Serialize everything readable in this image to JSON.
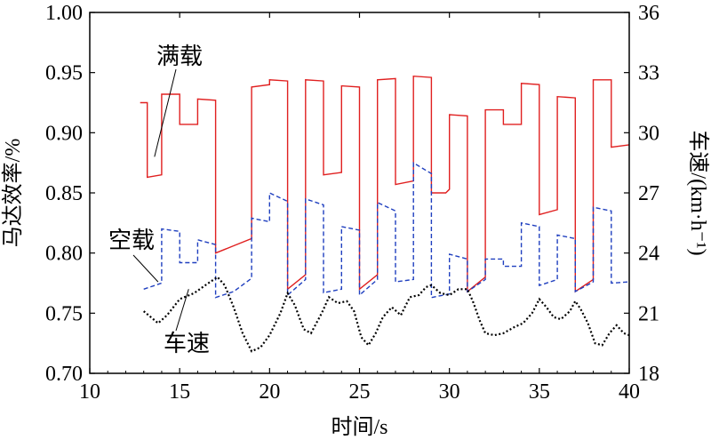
{
  "chart_data": {
    "type": "line",
    "xlabel": "时间/s",
    "ylabel_left": "马达效率/%",
    "ylabel_right": "车速/(km·h⁻¹)",
    "xlim": [
      10,
      40
    ],
    "ylim_left": [
      0.7,
      1.0
    ],
    "ylim_right": [
      18,
      36
    ],
    "x_ticks": [
      10,
      15,
      20,
      25,
      30,
      35,
      40
    ],
    "y_left_ticks": [
      "0.70",
      "0.75",
      "0.80",
      "0.85",
      "0.90",
      "0.95",
      "1.00"
    ],
    "y_right_ticks": [
      18,
      21,
      24,
      27,
      30,
      33,
      36
    ],
    "series": [
      {
        "name": "满载",
        "axis": "left",
        "color": "#e02020",
        "dash": "solid",
        "points": [
          [
            12.8,
            0.925
          ],
          [
            13.2,
            0.925
          ],
          [
            13.2,
            0.863
          ],
          [
            14.0,
            0.865
          ],
          [
            14.0,
            0.932
          ],
          [
            15.0,
            0.932
          ],
          [
            15.0,
            0.907
          ],
          [
            16.0,
            0.907
          ],
          [
            16.0,
            0.928
          ],
          [
            17.0,
            0.927
          ],
          [
            17.0,
            0.8
          ],
          [
            18.0,
            0.806
          ],
          [
            19.0,
            0.812
          ],
          [
            19.0,
            0.938
          ],
          [
            20.0,
            0.94
          ],
          [
            20.0,
            0.944
          ],
          [
            21.0,
            0.943
          ],
          [
            21.0,
            0.77
          ],
          [
            22.0,
            0.782
          ],
          [
            22.0,
            0.944
          ],
          [
            23.0,
            0.943
          ],
          [
            23.0,
            0.865
          ],
          [
            24.0,
            0.867
          ],
          [
            24.0,
            0.939
          ],
          [
            25.0,
            0.938
          ],
          [
            25.0,
            0.77
          ],
          [
            26.0,
            0.782
          ],
          [
            26.0,
            0.944
          ],
          [
            27.0,
            0.945
          ],
          [
            27.0,
            0.857
          ],
          [
            28.0,
            0.86
          ],
          [
            28.0,
            0.947
          ],
          [
            29.0,
            0.946
          ],
          [
            29.0,
            0.85
          ],
          [
            29.8,
            0.85
          ],
          [
            30.0,
            0.853
          ],
          [
            30.0,
            0.915
          ],
          [
            31.0,
            0.914
          ],
          [
            31.0,
            0.768
          ],
          [
            32.0,
            0.78
          ],
          [
            32.0,
            0.919
          ],
          [
            33.0,
            0.919
          ],
          [
            33.0,
            0.907
          ],
          [
            34.0,
            0.907
          ],
          [
            34.0,
            0.941
          ],
          [
            35.0,
            0.94
          ],
          [
            35.0,
            0.832
          ],
          [
            36.0,
            0.836
          ],
          [
            36.0,
            0.93
          ],
          [
            37.0,
            0.929
          ],
          [
            37.0,
            0.768
          ],
          [
            38.0,
            0.778
          ],
          [
            38.0,
            0.944
          ],
          [
            39.0,
            0.944
          ],
          [
            39.0,
            0.888
          ],
          [
            40.0,
            0.89
          ]
        ]
      },
      {
        "name": "空载",
        "axis": "left",
        "color": "#1f3fbf",
        "dash": "dashed",
        "points": [
          [
            13.0,
            0.77
          ],
          [
            14.0,
            0.775
          ],
          [
            14.0,
            0.82
          ],
          [
            15.0,
            0.818
          ],
          [
            15.0,
            0.792
          ],
          [
            16.0,
            0.792
          ],
          [
            16.0,
            0.811
          ],
          [
            17.0,
            0.807
          ],
          [
            17.0,
            0.763
          ],
          [
            18.0,
            0.768
          ],
          [
            19.0,
            0.779
          ],
          [
            19.0,
            0.829
          ],
          [
            20.0,
            0.826
          ],
          [
            20.0,
            0.85
          ],
          [
            21.0,
            0.843
          ],
          [
            21.0,
            0.765
          ],
          [
            22.0,
            0.778
          ],
          [
            22.0,
            0.845
          ],
          [
            23.0,
            0.84
          ],
          [
            23.0,
            0.767
          ],
          [
            24.0,
            0.77
          ],
          [
            24.0,
            0.822
          ],
          [
            25.0,
            0.819
          ],
          [
            25.0,
            0.765
          ],
          [
            26.0,
            0.778
          ],
          [
            26.0,
            0.842
          ],
          [
            27.0,
            0.835
          ],
          [
            27.0,
            0.776
          ],
          [
            28.0,
            0.778
          ],
          [
            28.0,
            0.875
          ],
          [
            29.0,
            0.866
          ],
          [
            29.0,
            0.763
          ],
          [
            30.0,
            0.766
          ],
          [
            30.0,
            0.799
          ],
          [
            31.0,
            0.795
          ],
          [
            31.0,
            0.768
          ],
          [
            32.0,
            0.778
          ],
          [
            32.0,
            0.795
          ],
          [
            33.0,
            0.795
          ],
          [
            33.0,
            0.789
          ],
          [
            34.0,
            0.789
          ],
          [
            34.0,
            0.825
          ],
          [
            35.0,
            0.822
          ],
          [
            35.0,
            0.773
          ],
          [
            36.0,
            0.778
          ],
          [
            36.0,
            0.815
          ],
          [
            37.0,
            0.812
          ],
          [
            37.0,
            0.768
          ],
          [
            38.0,
            0.776
          ],
          [
            38.0,
            0.838
          ],
          [
            39.0,
            0.835
          ],
          [
            39.0,
            0.775
          ],
          [
            40.0,
            0.776
          ]
        ]
      },
      {
        "name": "车速",
        "axis": "right",
        "color": "#000000",
        "dash": "dotted",
        "points": [
          [
            13.0,
            21.1
          ],
          [
            13.4,
            20.8
          ],
          [
            13.8,
            20.5
          ],
          [
            14.3,
            20.9
          ],
          [
            15.0,
            21.7
          ],
          [
            15.8,
            22.0
          ],
          [
            16.6,
            22.5
          ],
          [
            17.1,
            22.8
          ],
          [
            17.5,
            22.4
          ],
          [
            18.0,
            21.3
          ],
          [
            18.5,
            20.0
          ],
          [
            19.0,
            19.1
          ],
          [
            19.5,
            19.3
          ],
          [
            20.0,
            19.9
          ],
          [
            20.6,
            21.0
          ],
          [
            21.0,
            22.0
          ],
          [
            21.4,
            21.4
          ],
          [
            21.9,
            20.2
          ],
          [
            22.3,
            20.0
          ],
          [
            22.9,
            21.0
          ],
          [
            23.3,
            21.8
          ],
          [
            23.8,
            21.5
          ],
          [
            24.3,
            21.6
          ],
          [
            24.7,
            21.1
          ],
          [
            25.1,
            19.8
          ],
          [
            25.5,
            19.4
          ],
          [
            25.9,
            20.0
          ],
          [
            26.3,
            20.8
          ],
          [
            26.8,
            21.3
          ],
          [
            27.3,
            20.9
          ],
          [
            27.8,
            21.8
          ],
          [
            28.3,
            21.9
          ],
          [
            28.7,
            22.3
          ],
          [
            29.0,
            22.4
          ],
          [
            29.5,
            22.0
          ],
          [
            30.0,
            21.9
          ],
          [
            30.5,
            22.2
          ],
          [
            31.0,
            22.2
          ],
          [
            31.3,
            21.6
          ],
          [
            31.7,
            20.6
          ],
          [
            32.0,
            20.0
          ],
          [
            32.5,
            19.9
          ],
          [
            33.0,
            20.0
          ],
          [
            33.6,
            20.3
          ],
          [
            34.1,
            20.5
          ],
          [
            34.6,
            21.0
          ],
          [
            35.0,
            21.7
          ],
          [
            35.4,
            21.3
          ],
          [
            35.8,
            20.8
          ],
          [
            36.2,
            20.7
          ],
          [
            36.7,
            21.1
          ],
          [
            37.0,
            21.6
          ],
          [
            37.3,
            21.2
          ],
          [
            37.7,
            20.5
          ],
          [
            38.1,
            19.5
          ],
          [
            38.5,
            19.4
          ],
          [
            38.9,
            20.0
          ],
          [
            39.3,
            20.4
          ],
          [
            39.7,
            20.0
          ],
          [
            40.0,
            19.9
          ]
        ]
      }
    ],
    "annotations": [
      {
        "text": "满载",
        "series": "满载"
      },
      {
        "text": "空载",
        "series": "空载"
      },
      {
        "text": "车速",
        "series": "车速"
      }
    ]
  }
}
